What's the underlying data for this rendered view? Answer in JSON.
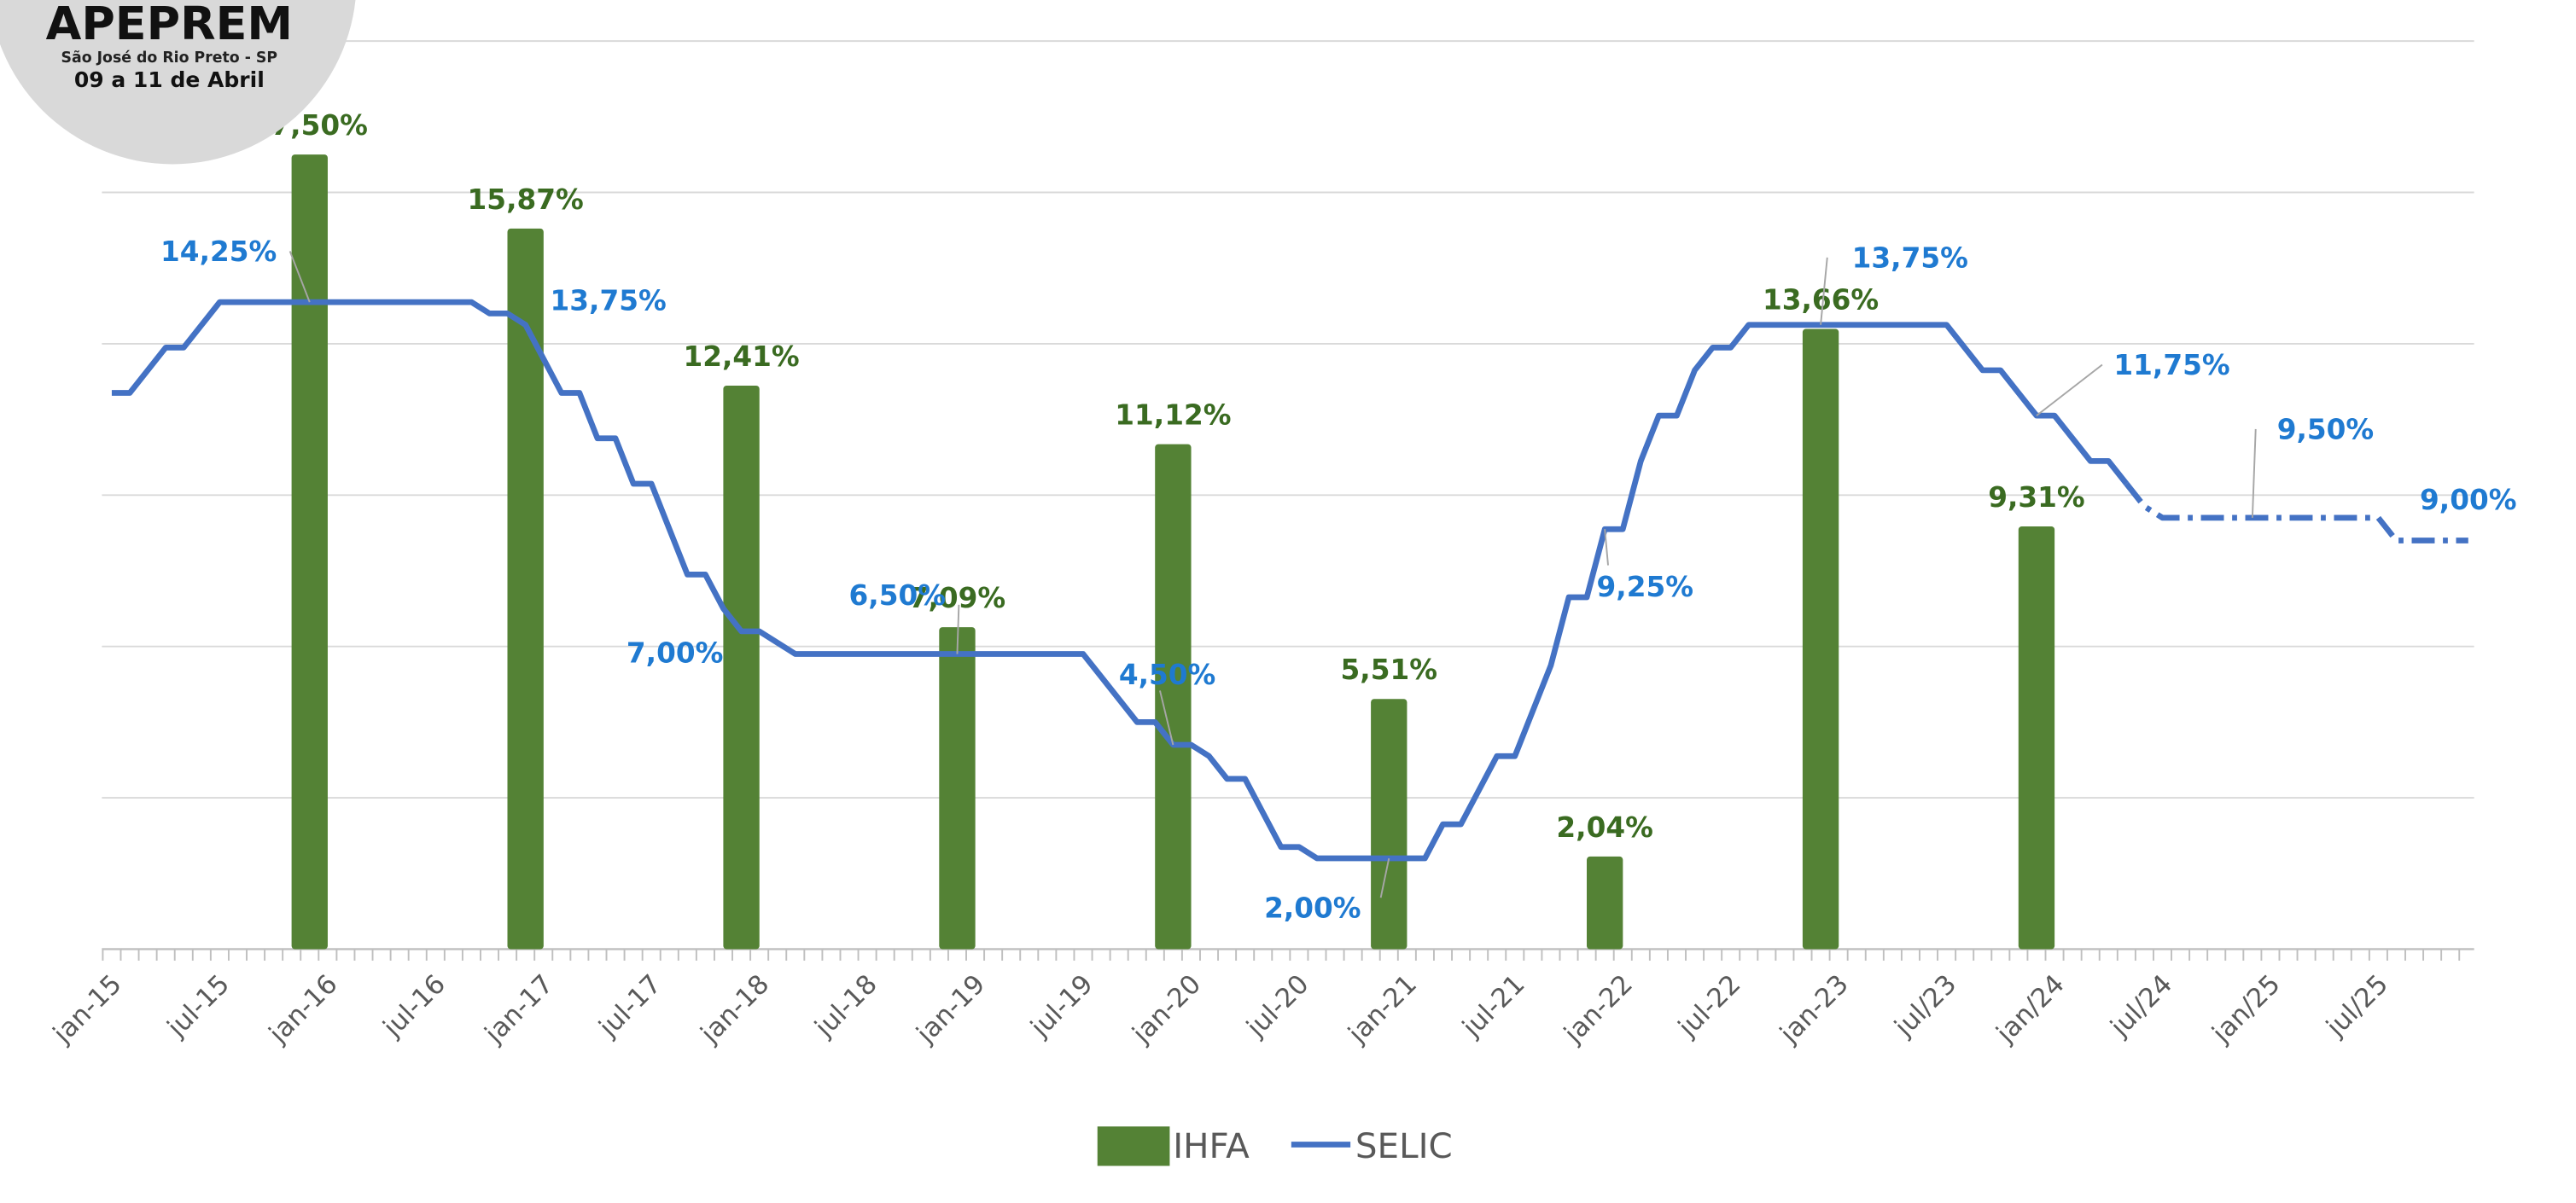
{
  "logo": {
    "name": "APEPREM",
    "place": "São José do Rio Preto - SP",
    "dates": "09 a 11 de Abril"
  },
  "chart_data": {
    "type": "bar_line",
    "categories": [
      "jan-15",
      null,
      null,
      null,
      null,
      null,
      "jul-15",
      null,
      null,
      null,
      null,
      null,
      "jan-16",
      null,
      null,
      null,
      null,
      null,
      "jul-16",
      null,
      null,
      null,
      null,
      null,
      "jan-17",
      null,
      null,
      null,
      null,
      null,
      "jul-17",
      null,
      null,
      null,
      null,
      null,
      "jan-18",
      null,
      null,
      null,
      null,
      null,
      "jul-18",
      null,
      null,
      null,
      null,
      null,
      "jan-19",
      null,
      null,
      null,
      null,
      null,
      "jul-19",
      null,
      null,
      null,
      null,
      null,
      "jan-20",
      null,
      null,
      null,
      null,
      null,
      "jul-20",
      null,
      null,
      null,
      null,
      null,
      "jan-21",
      null,
      null,
      null,
      null,
      null,
      "jul-21",
      null,
      null,
      null,
      null,
      null,
      "jan-22",
      null,
      null,
      null,
      null,
      null,
      "jul-22",
      null,
      null,
      null,
      null,
      null,
      "jan-23",
      null,
      null,
      null,
      null,
      null,
      "jul/23",
      null,
      null,
      null,
      null,
      null,
      "jan/24",
      null,
      null,
      null,
      null,
      null,
      "jul/24",
      null,
      null,
      null,
      null,
      null,
      "jan/25",
      null,
      null,
      null,
      null,
      null,
      "jul/25",
      null,
      null,
      null,
      null,
      null
    ],
    "series": [
      {
        "name": "IHFA",
        "kind": "bar",
        "color": "#548235",
        "values": [
          null,
          null,
          null,
          null,
          null,
          null,
          null,
          null,
          null,
          null,
          null,
          17.5,
          null,
          null,
          null,
          null,
          null,
          null,
          null,
          null,
          null,
          null,
          null,
          15.87,
          null,
          null,
          null,
          null,
          null,
          null,
          null,
          null,
          null,
          null,
          null,
          12.41,
          null,
          null,
          null,
          null,
          null,
          null,
          null,
          null,
          null,
          null,
          null,
          7.09,
          null,
          null,
          null,
          null,
          null,
          null,
          null,
          null,
          null,
          null,
          null,
          11.12,
          null,
          null,
          null,
          null,
          null,
          null,
          null,
          null,
          null,
          null,
          null,
          5.51,
          null,
          null,
          null,
          null,
          null,
          null,
          null,
          null,
          null,
          null,
          null,
          2.04,
          null,
          null,
          null,
          null,
          null,
          null,
          null,
          null,
          null,
          null,
          null,
          13.66,
          null,
          null,
          null,
          null,
          null,
          null,
          null,
          null,
          null,
          null,
          null,
          9.31,
          null,
          null,
          null,
          null,
          null,
          null,
          null,
          null,
          null,
          null,
          null,
          null,
          null,
          null,
          null,
          null,
          null,
          null,
          null,
          null,
          null,
          null,
          null,
          null
        ],
        "value_labels": [
          null,
          null,
          null,
          null,
          null,
          null,
          null,
          null,
          null,
          null,
          null,
          "17,50%",
          null,
          null,
          null,
          null,
          null,
          null,
          null,
          null,
          null,
          null,
          null,
          "15,87%",
          null,
          null,
          null,
          null,
          null,
          null,
          null,
          null,
          null,
          null,
          null,
          "12,41%",
          null,
          null,
          null,
          null,
          null,
          null,
          null,
          null,
          null,
          null,
          null,
          "7,09%",
          null,
          null,
          null,
          null,
          null,
          null,
          null,
          null,
          null,
          null,
          null,
          "11,12%",
          null,
          null,
          null,
          null,
          null,
          null,
          null,
          null,
          null,
          null,
          null,
          "5,51%",
          null,
          null,
          null,
          null,
          null,
          null,
          null,
          null,
          null,
          null,
          null,
          "2,04%",
          null,
          null,
          null,
          null,
          null,
          null,
          null,
          null,
          null,
          null,
          null,
          "13,66%",
          null,
          null,
          null,
          null,
          null,
          null,
          null,
          null,
          null,
          null,
          null,
          "9,31%",
          null,
          null,
          null,
          null,
          null,
          null,
          null,
          null,
          null,
          null,
          null,
          null,
          null,
          null,
          null,
          null,
          null,
          null,
          null,
          null,
          null,
          null,
          null,
          null
        ]
      },
      {
        "name": "SELIC",
        "kind": "line",
        "color": "#4472c4",
        "dashed_from": 112,
        "values": [
          12.25,
          12.25,
          12.75,
          13.25,
          13.25,
          13.75,
          14.25,
          14.25,
          14.25,
          14.25,
          14.25,
          14.25,
          14.25,
          14.25,
          14.25,
          14.25,
          14.25,
          14.25,
          14.25,
          14.25,
          14.25,
          14.0,
          14.0,
          13.75,
          13.0,
          12.25,
          12.25,
          11.25,
          11.25,
          10.25,
          10.25,
          9.25,
          8.25,
          8.25,
          7.5,
          7.0,
          7.0,
          6.75,
          6.5,
          6.5,
          6.5,
          6.5,
          6.5,
          6.5,
          6.5,
          6.5,
          6.5,
          6.5,
          6.5,
          6.5,
          6.5,
          6.5,
          6.5,
          6.5,
          6.5,
          6.0,
          5.5,
          5.0,
          5.0,
          4.5,
          4.5,
          4.25,
          3.75,
          3.75,
          3.0,
          2.25,
          2.25,
          2.0,
          2.0,
          2.0,
          2.0,
          2.0,
          2.0,
          2.0,
          2.75,
          2.75,
          3.5,
          4.25,
          4.25,
          5.25,
          6.25,
          7.75,
          7.75,
          9.25,
          9.25,
          10.75,
          11.75,
          11.75,
          12.75,
          13.25,
          13.25,
          13.75,
          13.75,
          13.75,
          13.75,
          13.75,
          13.75,
          13.75,
          13.75,
          13.75,
          13.75,
          13.75,
          13.75,
          13.25,
          12.75,
          12.75,
          12.25,
          11.75,
          11.75,
          11.25,
          10.75,
          10.75,
          10.25,
          9.75,
          9.5,
          9.5,
          9.5,
          9.5,
          9.5,
          9.5,
          9.5,
          9.5,
          9.5,
          9.5,
          9.5,
          9.5,
          9.5,
          9.0,
          9.0,
          9.0,
          9.0,
          9.0
        ],
        "value_labels": [
          null,
          null,
          null,
          null,
          null,
          null,
          null,
          null,
          null,
          null,
          null,
          "14,25%",
          null,
          null,
          null,
          null,
          null,
          null,
          null,
          null,
          null,
          null,
          null,
          "13,75%",
          null,
          null,
          null,
          null,
          null,
          null,
          null,
          null,
          null,
          null,
          null,
          "7,00%",
          null,
          null,
          null,
          null,
          null,
          null,
          null,
          null,
          null,
          null,
          null,
          "6,50%",
          null,
          null,
          null,
          null,
          null,
          null,
          null,
          null,
          null,
          null,
          null,
          "4,50%",
          null,
          null,
          null,
          null,
          null,
          null,
          null,
          null,
          null,
          null,
          null,
          "2,00%",
          null,
          null,
          null,
          null,
          null,
          null,
          null,
          null,
          null,
          null,
          null,
          "9,25%",
          null,
          null,
          null,
          null,
          null,
          null,
          null,
          null,
          null,
          null,
          null,
          "13,75%",
          null,
          null,
          null,
          null,
          null,
          null,
          null,
          null,
          null,
          null,
          null,
          "11,75%",
          null,
          null,
          null,
          null,
          null,
          null,
          null,
          null,
          null,
          null,
          null,
          "9,50%",
          null,
          null,
          null,
          null,
          null,
          null,
          null,
          null,
          null,
          null,
          null,
          "9,00%"
        ]
      }
    ],
    "ylim": [
      0,
      20
    ],
    "yticks": [
      0,
      3.333,
      6.667,
      10,
      13.333,
      16.667,
      20
    ],
    "grid": true,
    "legend": "bottom"
  }
}
